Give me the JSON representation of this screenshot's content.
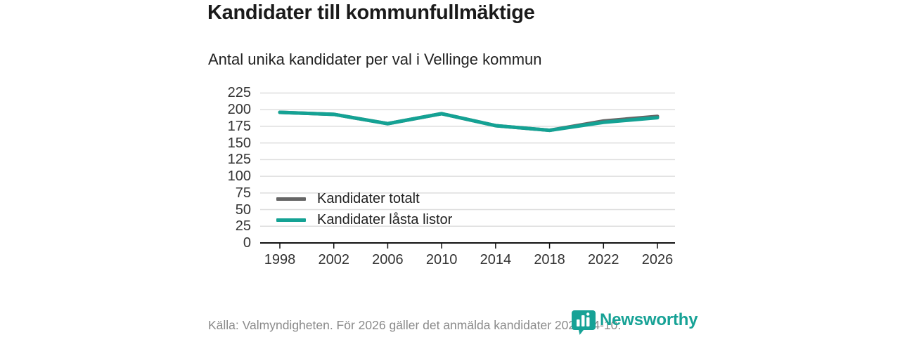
{
  "header": {
    "title": "Kandidater till kommunfullmäktige",
    "subtitle": "Antal unika kandidater per val i Vellinge kommun"
  },
  "chart_data": {
    "type": "line",
    "title": "Kandidater till kommunfullmäktige",
    "subtitle": "Antal unika kandidater per val i Vellinge kommun",
    "x": [
      1998,
      2002,
      2006,
      2010,
      2014,
      2018,
      2022,
      2026
    ],
    "series": [
      {
        "name": "Kandidater totalt",
        "color": "#666666",
        "values": [
          196,
          193,
          179,
          194,
          176,
          169,
          183,
          190
        ]
      },
      {
        "name": "Kandidater låsta listor",
        "color": "#14a294",
        "values": [
          196,
          193,
          179,
          194,
          176,
          169,
          181,
          188
        ]
      }
    ],
    "ylim": [
      0,
      225
    ],
    "ytick_step": 25,
    "grid": true,
    "legend_position": "inside-bottom-left"
  },
  "footer": {
    "source": "Källa: Valmyndigheten. För 2026 gäller det anmälda kandidater 2026-04-10.",
    "brand": "Newsworthy"
  },
  "colors": {
    "accent_teal": "#14a294",
    "line_gray": "#666666",
    "grid": "#dedede",
    "axis": "#111111",
    "footer_text": "#8a8a8a",
    "brand_teal": "#17a296"
  }
}
